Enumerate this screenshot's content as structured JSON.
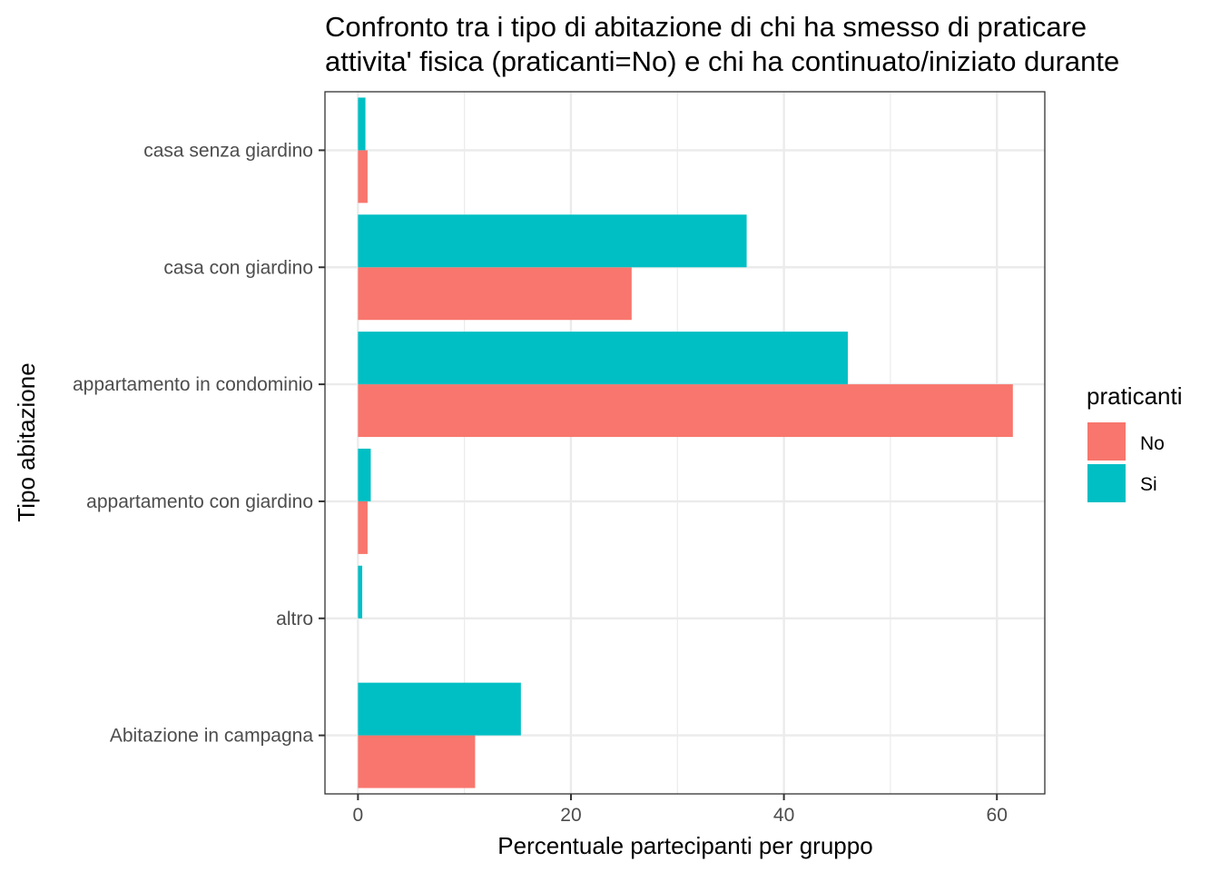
{
  "chart_data": {
    "type": "bar",
    "orientation": "horizontal",
    "title_lines": [
      "Confronto tra i tipo di abitazione di chi ha smesso di praticare",
      "attivita' fisica (praticanti=No) e chi ha continuato/iniziato durante"
    ],
    "xlabel": "Percentuale partecipanti per gruppo",
    "ylabel": "Tipo abitazione",
    "categories": [
      "casa senza giardino",
      "casa con giardino",
      "appartamento in condominio",
      "appartamento con giardino",
      "altro",
      "Abitazione in campagna"
    ],
    "series": [
      {
        "name": "No",
        "color": "#F8766D",
        "values": [
          0.9,
          25.7,
          61.5,
          0.9,
          0.0,
          11.0
        ]
      },
      {
        "name": "Si",
        "color": "#00BFC4",
        "values": [
          0.7,
          36.5,
          46.0,
          1.2,
          0.4,
          15.3
        ]
      }
    ],
    "xlim": [
      -3.1,
      64.5
    ],
    "xticks": [
      "0",
      "20",
      "40",
      "60"
    ],
    "xtick_values": [
      0,
      20,
      40,
      60
    ],
    "grid": true,
    "legend": {
      "title": "praticanti",
      "position": "right",
      "items": [
        "No",
        "Si"
      ]
    }
  }
}
